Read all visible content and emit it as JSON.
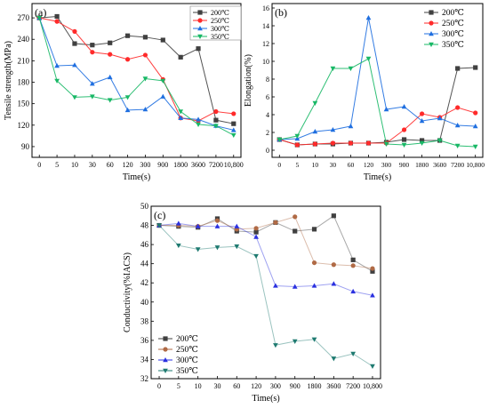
{
  "chart_data": [
    {
      "panel": "(a)",
      "type": "line",
      "xlabel": "Time(s)",
      "ylabel": "Tensile strength(MPa)",
      "categories": [
        "0",
        "5",
        "10",
        "30",
        "60",
        "120",
        "300",
        "900",
        "1800",
        "3600",
        "7200",
        "10,800"
      ],
      "ylim": [
        75,
        290
      ],
      "yticks": [
        90,
        120,
        150,
        180,
        210,
        240,
        270
      ],
      "grid": false,
      "legend_position": "top-right",
      "series": [
        {
          "name": "200℃",
          "color": "#404040",
          "marker": "square",
          "values": [
            270,
            272,
            234,
            232,
            235,
            245,
            243,
            239,
            215,
            227,
            127,
            122
          ]
        },
        {
          "name": "250℃",
          "color": "#ff2a2a",
          "marker": "circle",
          "values": [
            270,
            265,
            251,
            222,
            219,
            212,
            218,
            184,
            130,
            126,
            139,
            136
          ]
        },
        {
          "name": "300℃",
          "color": "#1f6fe0",
          "marker": "triangle-up",
          "values": [
            270,
            203,
            204,
            178,
            187,
            141,
            142,
            160,
            130,
            128,
            119,
            113
          ]
        },
        {
          "name": "350℃",
          "color": "#18b866",
          "marker": "triangle-down",
          "values": [
            270,
            182,
            159,
            160,
            155,
            159,
            185,
            182,
            139,
            121,
            119,
            106
          ]
        }
      ]
    },
    {
      "panel": "(b)",
      "type": "line",
      "xlabel": "Time(s)",
      "ylabel": "Elongation(%)",
      "categories": [
        "0",
        "5",
        "10",
        "30",
        "60",
        "120",
        "300",
        "900",
        "1800",
        "3600",
        "7200",
        "10,800"
      ],
      "ylim": [
        -0.8,
        16.5
      ],
      "yticks": [
        0,
        2,
        4,
        6,
        8,
        10,
        12,
        14,
        16
      ],
      "grid": false,
      "legend_position": "top-right",
      "series": [
        {
          "name": "200℃",
          "color": "#404040",
          "marker": "square",
          "values": [
            1.2,
            0.6,
            0.7,
            0.7,
            0.8,
            0.8,
            0.9,
            1.2,
            1.1,
            1.1,
            9.2,
            9.3
          ]
        },
        {
          "name": "250℃",
          "color": "#ff2a2a",
          "marker": "circle",
          "values": [
            1.2,
            0.6,
            0.7,
            0.8,
            0.8,
            0.8,
            0.8,
            2.3,
            4.1,
            3.7,
            4.8,
            4.2
          ]
        },
        {
          "name": "300℃",
          "color": "#1f6fe0",
          "marker": "triangle-up",
          "values": [
            1.2,
            1.3,
            2.1,
            2.3,
            2.7,
            14.9,
            4.6,
            4.9,
            3.3,
            3.6,
            2.8,
            2.7
          ]
        },
        {
          "name": "350℃",
          "color": "#18b866",
          "marker": "triangle-down",
          "values": [
            1.2,
            1.6,
            5.3,
            9.2,
            9.2,
            10.3,
            0.7,
            0.6,
            0.8,
            1.1,
            0.5,
            0.4
          ]
        }
      ]
    },
    {
      "panel": "(c)",
      "type": "line",
      "xlabel": "Time(s)",
      "ylabel": "Conductivity(%IACS)",
      "categories": [
        "0",
        "5",
        "10",
        "30",
        "60",
        "120",
        "300",
        "900",
        "1800",
        "3600",
        "7200",
        "10,800"
      ],
      "ylim": [
        32,
        50
      ],
      "yticks": [
        32,
        34,
        36,
        38,
        40,
        42,
        44,
        46,
        48,
        50
      ],
      "grid": false,
      "legend_position": "bottom-left",
      "series": [
        {
          "name": "200℃",
          "color": "#404040",
          "marker": "square",
          "values": [
            48.0,
            47.9,
            47.8,
            48.7,
            47.4,
            47.3,
            48.3,
            47.4,
            47.6,
            49.0,
            44.4,
            43.2
          ]
        },
        {
          "name": "250℃",
          "color": "#b06a45",
          "marker": "circle",
          "values": [
            48.0,
            48.0,
            47.9,
            48.5,
            47.6,
            47.7,
            48.3,
            48.9,
            44.1,
            43.9,
            43.8,
            43.5
          ]
        },
        {
          "name": "300℃",
          "color": "#2a30e0",
          "marker": "triangle-up",
          "values": [
            48.0,
            48.2,
            47.9,
            47.9,
            47.9,
            46.8,
            41.7,
            41.6,
            41.7,
            41.9,
            41.1,
            40.7
          ]
        },
        {
          "name": "350℃",
          "color": "#1e7a70",
          "marker": "triangle-down",
          "values": [
            48.0,
            45.9,
            45.5,
            45.7,
            45.8,
            44.8,
            35.5,
            35.9,
            36.1,
            34.1,
            34.6,
            33.3
          ]
        }
      ]
    }
  ]
}
